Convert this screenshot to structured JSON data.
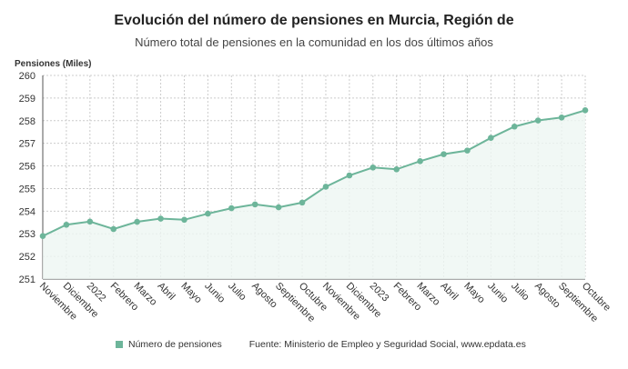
{
  "chart_data": {
    "type": "area",
    "title": "Evolución del número de pensiones en Murcia, Región de",
    "subtitle": "Número total de pensiones en la comunidad en los dos últimos años",
    "ylabel": "Pensiones (Miles)",
    "xlabel": "",
    "ylim": [
      251,
      260
    ],
    "yticks": [
      251,
      252,
      253,
      254,
      255,
      256,
      257,
      258,
      259,
      260
    ],
    "grid": true,
    "categories": [
      "Noviembre",
      "Diciembre",
      "2022",
      "Febrero",
      "Marzo",
      "Abril",
      "Mayo",
      "Junio",
      "Julio",
      "Agosto",
      "Septiembre",
      "Octubre",
      "Noviembre",
      "Diciembre",
      "2023",
      "Febrero",
      "Marzo",
      "Abril",
      "Mayo",
      "Junio",
      "Julio",
      "Agosto",
      "Septiembre",
      "Octubre"
    ],
    "series": [
      {
        "name": "Número de pensiones",
        "color": "#6db59a",
        "values": [
          252.9,
          253.4,
          253.54,
          253.21,
          253.53,
          253.67,
          253.62,
          253.89,
          254.13,
          254.3,
          254.17,
          254.38,
          255.08,
          255.58,
          255.93,
          255.85,
          256.21,
          256.52,
          256.68,
          257.24,
          257.74,
          258.01,
          258.14,
          258.46
        ]
      }
    ],
    "legend_position": "bottom",
    "source": "Fuente: Ministerio de Empleo y Seguridad Social, www.epdata.es"
  }
}
